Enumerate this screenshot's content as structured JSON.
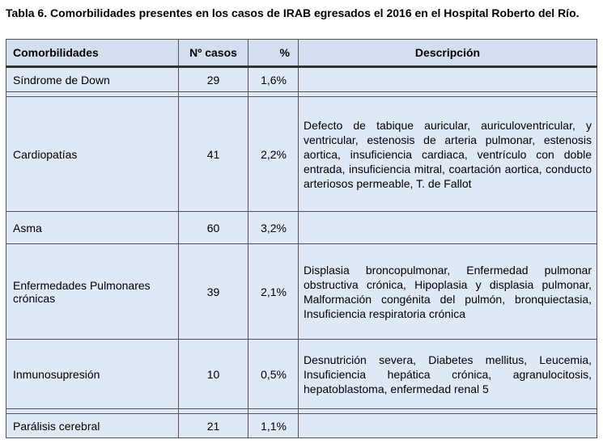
{
  "caption": "Tabla 6. Comorbilidades presentes en los casos de IRAB egresados el 2016 en el Hospital Roberto del Río.",
  "headers": {
    "name": "Comorbilidades",
    "cases": "Nº casos",
    "pct": "%",
    "desc": "Descripción"
  },
  "rows": [
    {
      "name": "Síndrome de Down",
      "cases": "29",
      "pct": "1,6%",
      "desc": ""
    },
    {
      "name": "Cardiopatías",
      "cases": "41",
      "pct": "2,2%",
      "desc": "Defecto de tabique auricular, auriculoventricular, y ventricular, estenosis de arteria pulmonar, estenosis aortica, insuficiencia cardiaca, ventrículo con doble entrada, insuficiencia mitral, coartación aortica, conducto arteriosos permeable, T. de Fallot"
    },
    {
      "name": "Asma",
      "cases": "60",
      "pct": "3,2%",
      "desc": ""
    },
    {
      "name": "Enfermedades Pulmonares crónicas",
      "cases": "39",
      "pct": "2,1%",
      "desc": "Displasia broncopulmonar, Enfermedad pulmonar obstructiva crónica, Hipoplasia y displasia pulmonar, Malformación congénita del pulmón, bronquiectasia, Insuficiencia respiratoria crónica"
    },
    {
      "name": "Inmunosupresión",
      "cases": "10",
      "pct": "0,5%",
      "desc": "Desnutrición severa, Diabetes mellitus, Leucemia, Insuficiencia hepática crónica, agranulocitosis, hepatoblastoma, enfermedad renal 5"
    },
    {
      "name": "Parálisis cerebral",
      "cases": "21",
      "pct": "1,1%",
      "desc": ""
    }
  ]
}
